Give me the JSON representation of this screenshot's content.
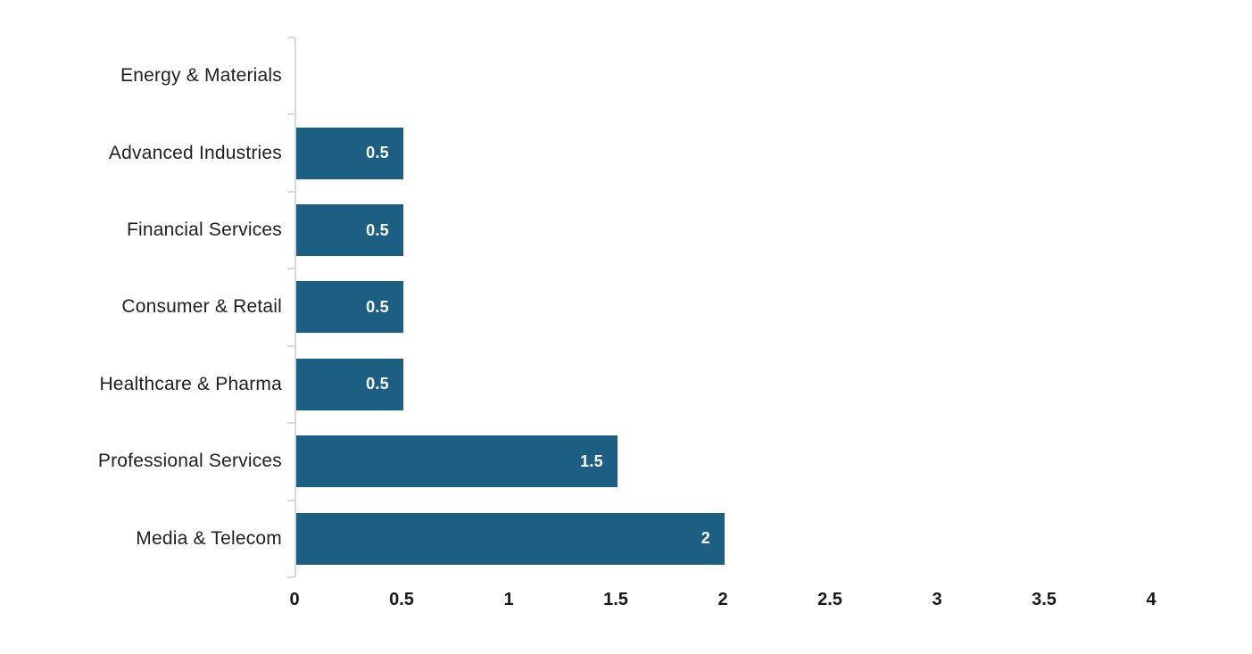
{
  "chart_data": {
    "type": "bar",
    "orientation": "horizontal",
    "title": "",
    "xlabel": "",
    "ylabel": "",
    "categories": [
      "Energy & Materials",
      "Advanced Industries",
      "Financial Services",
      "Consumer & Retail",
      "Healthcare & Pharma",
      "Professional Services",
      "Media & Telecom"
    ],
    "values": [
      0,
      0.5,
      0.5,
      0.5,
      0.5,
      1.5,
      2
    ],
    "bar_labels": [
      "",
      "0.5",
      "0.5",
      "0.5",
      "0.5",
      "1.5",
      "2"
    ],
    "x_ticks": [
      0,
      0.5,
      1,
      1.5,
      2,
      2.5,
      3,
      3.5,
      4
    ],
    "x_tick_labels": [
      "0",
      "0.5",
      "1",
      "1.5",
      "2",
      "2.5",
      "3",
      "3.5",
      "4"
    ],
    "xlim": [
      0,
      4.46
    ],
    "grid": false,
    "legend": false,
    "colors": {
      "bar": "#1c5f82",
      "bar_label_text": "#ffffff",
      "axis_line": "#d9d9d9",
      "category_text": "#1f1f1f",
      "tick_text": "#181818",
      "background": "#ffffff"
    }
  }
}
